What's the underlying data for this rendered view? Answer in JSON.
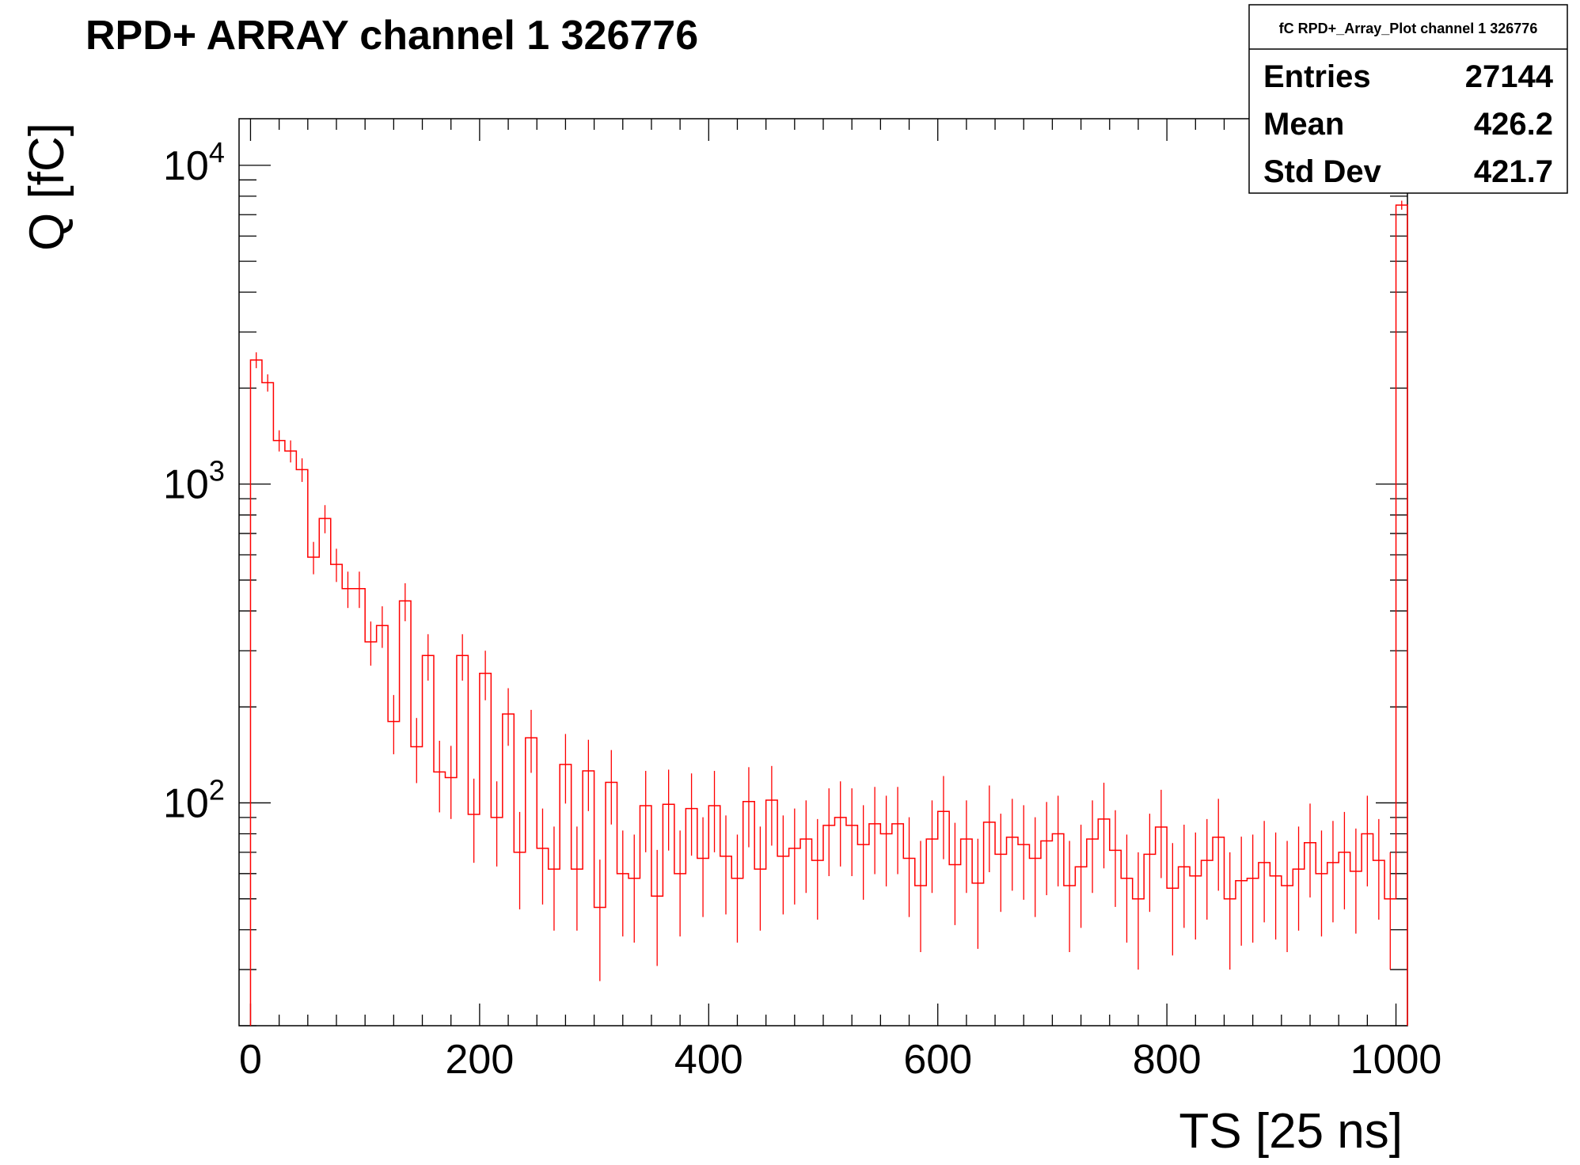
{
  "chart_data": {
    "type": "histogram",
    "title": "RPD+ ARRAY channel 1 326776",
    "xlabel": "TS [25 ns]",
    "ylabel": "Q [fC]",
    "y_scale": "log",
    "xlim": [
      -10,
      1010
    ],
    "ylim": [
      20,
      14000
    ],
    "x_ticks": [
      0,
      200,
      400,
      600,
      800,
      1000
    ],
    "y_ticks": [
      {
        "base": "10",
        "exp": "2",
        "value": 100
      },
      {
        "base": "10",
        "exp": "3",
        "value": 1000
      },
      {
        "base": "10",
        "exp": "4",
        "value": 10000
      }
    ],
    "line_color": "#ff0000",
    "bin_width": 10,
    "bin_start": 0,
    "values": [
      2450,
      2080,
      1370,
      1270,
      1110,
      590,
      780,
      560,
      470,
      470,
      320,
      360,
      180,
      430,
      150,
      290,
      125,
      120,
      290,
      92,
      255,
      90,
      190,
      70,
      160,
      72,
      62,
      132,
      62,
      126,
      47,
      116,
      60,
      58,
      98,
      51,
      99,
      60,
      96,
      67,
      98,
      68,
      58,
      101,
      62,
      102,
      68,
      72,
      77,
      66,
      85,
      90,
      85,
      74,
      86,
      80,
      86,
      67,
      55,
      77,
      94,
      64,
      77,
      56,
      87,
      69,
      78,
      74,
      67,
      76,
      80,
      55,
      63,
      77,
      89,
      71,
      58,
      50,
      69,
      84,
      54,
      63,
      59,
      66,
      78,
      50,
      57,
      58,
      65,
      59,
      55,
      62,
      75,
      60,
      65,
      70,
      61,
      80,
      66,
      50
    ],
    "last_bin": {
      "x": 1005,
      "value": 7500
    },
    "stats": {
      "title": "fC RPD+_Array_Plot channel 1 326776",
      "rows": [
        {
          "label": "Entries",
          "value": "27144"
        },
        {
          "label": "Mean",
          "value": "426.2"
        },
        {
          "label": "Std Dev",
          "value": "421.7"
        }
      ]
    }
  }
}
